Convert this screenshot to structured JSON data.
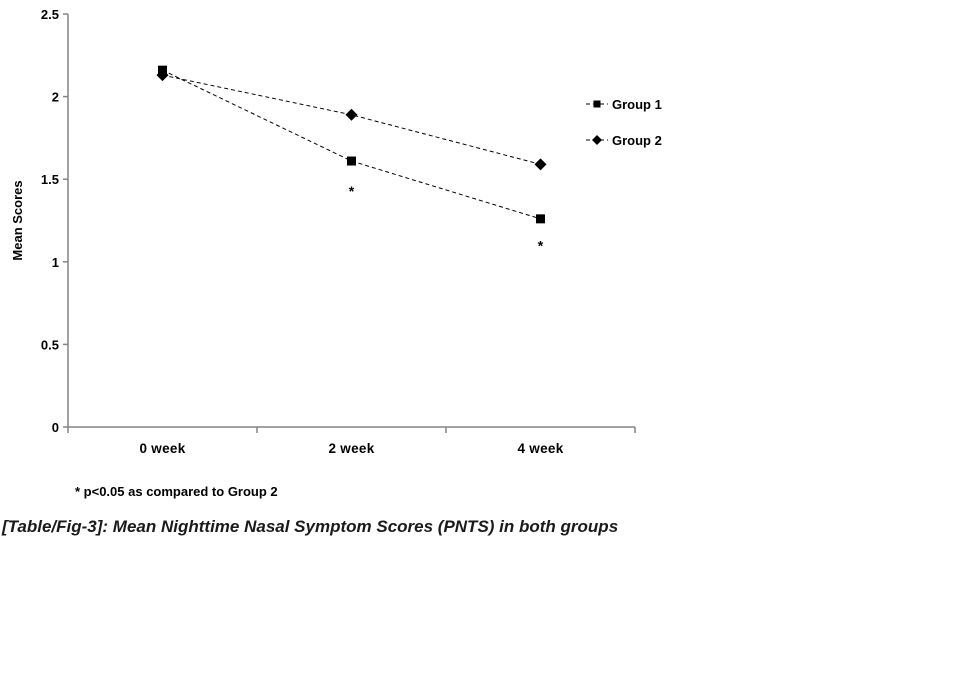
{
  "page": {
    "background": "#ffffff"
  },
  "chart_data": {
    "type": "line",
    "categories": [
      "0 week",
      "2 week",
      "4 week"
    ],
    "series": [
      {
        "name": "Group 1",
        "marker": "square",
        "values": [
          2.16,
          1.61,
          1.26
        ]
      },
      {
        "name": "Group 2",
        "marker": "diamond",
        "values": [
          2.13,
          1.89,
          1.59
        ]
      }
    ],
    "annotations": [
      {
        "text": "*",
        "category": "2 week",
        "xIndex": 1,
        "y": 1.43
      },
      {
        "text": "*",
        "category": "4 week",
        "xIndex": 2,
        "y": 1.1
      }
    ],
    "title": "",
    "xlabel": "",
    "ylabel": "Mean Scores",
    "ylim": [
      0,
      2.5
    ],
    "ytick_step": 0.5,
    "ytick_labels": [
      "0",
      "0.5",
      "1",
      "1.5",
      "2",
      "2.5"
    ],
    "legend_entries": [
      "Group 1",
      "Group 2"
    ],
    "legend_position": "right",
    "grid": false,
    "line_style": "dashed",
    "line_color": "#000000",
    "marker_color": "#000000",
    "axis_color": "#848484",
    "text_color": "#000000"
  },
  "footnote": "* p<0.05 as compared to Group 2",
  "caption": "[Table/Fig-3]: Mean Nighttime Nasal Symptom Scores (PNTS) in both groups"
}
